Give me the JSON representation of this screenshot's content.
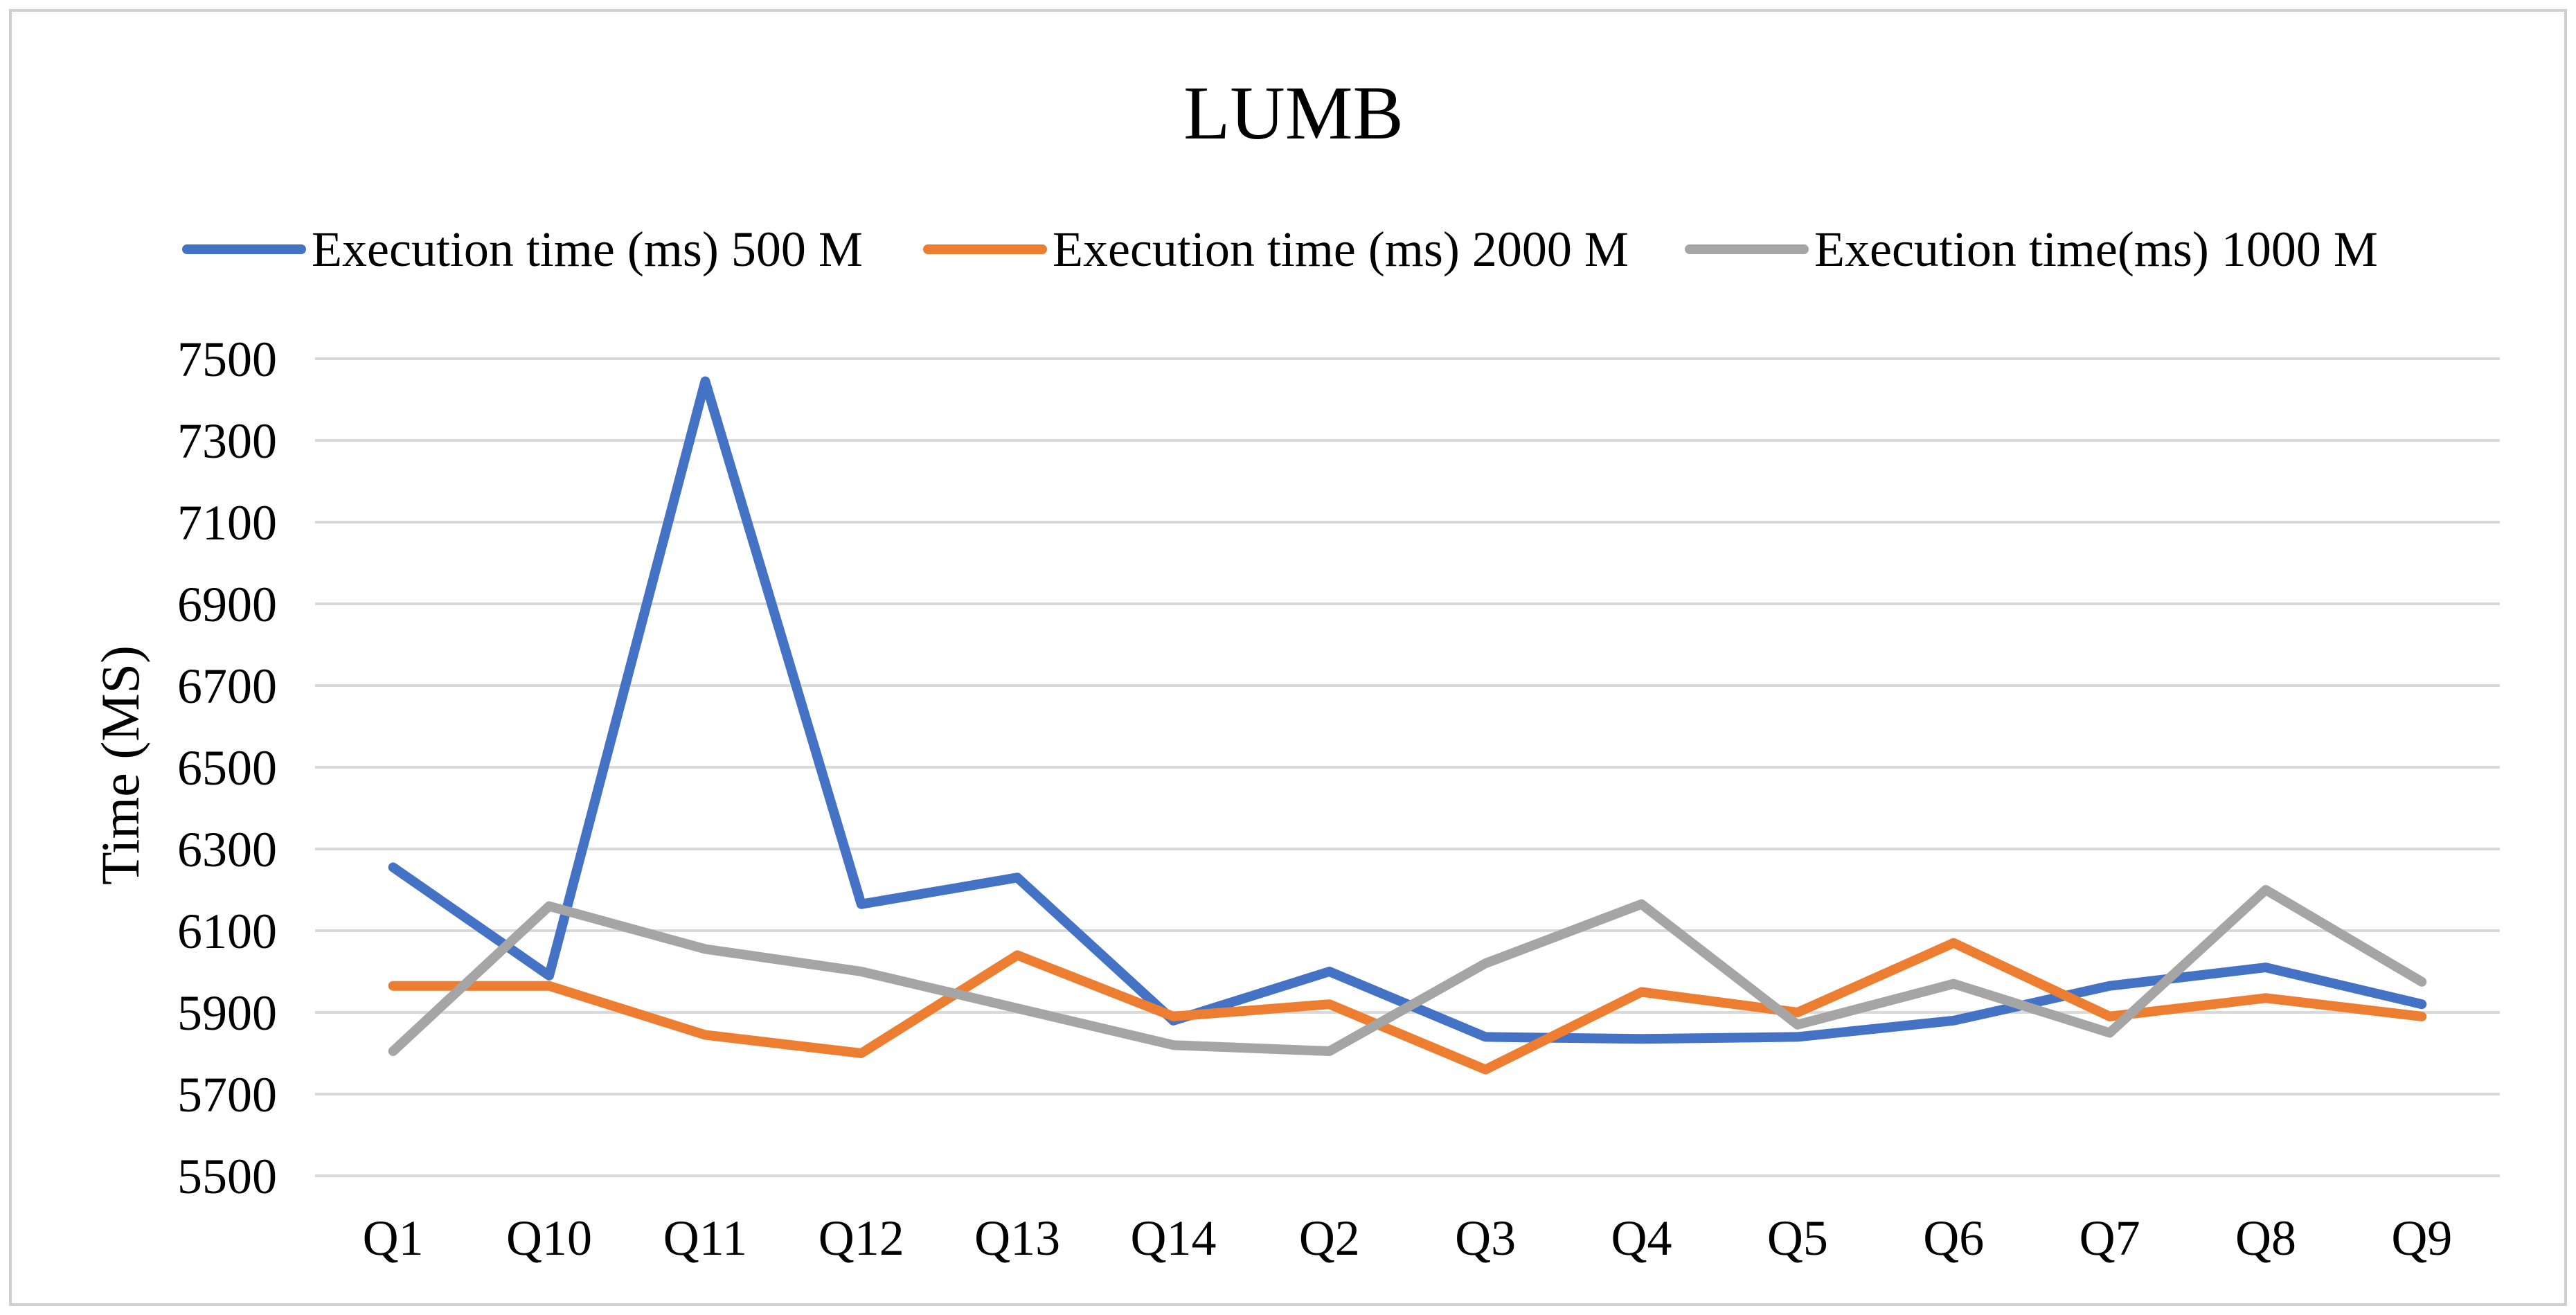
{
  "colors": {
    "background": "#ffffff",
    "frame": "#d0d0d0",
    "gridline": "#d9d9d9",
    "axis": "#d9d9d9",
    "text": "#000000"
  },
  "chart_data": {
    "type": "line",
    "title": "LUMB",
    "xlabel": "",
    "ylabel": "Time (MS)",
    "ylim": [
      5500,
      7500
    ],
    "ytick_step": 200,
    "yticks": [
      "5500",
      "5700",
      "5900",
      "6100",
      "6300",
      "6500",
      "6700",
      "6900",
      "7100",
      "7300",
      "7500"
    ],
    "grid": true,
    "legend_position": "top",
    "categories": [
      "Q1",
      "Q10",
      "Q11",
      "Q12",
      "Q13",
      "Q14",
      "Q2",
      "Q3",
      "Q4",
      "Q5",
      "Q6",
      "Q7",
      "Q8",
      "Q9"
    ],
    "series": [
      {
        "name": "Execution time (ms) 500 M",
        "color": "#4472C4",
        "values": [
          6255,
          5990,
          7445,
          6165,
          6230,
          5880,
          6000,
          5840,
          5835,
          5840,
          5880,
          5965,
          6010,
          5920
        ]
      },
      {
        "name": "Execution time (ms) 2000 M",
        "color": "#ED7D31",
        "values": [
          5965,
          5965,
          5845,
          5800,
          6040,
          5890,
          5920,
          5760,
          5950,
          5900,
          6070,
          5890,
          5935,
          5890
        ]
      },
      {
        "name": "Execution time(ms) 1000 M",
        "color": "#A5A5A5",
        "values": [
          5805,
          6160,
          6055,
          6000,
          5910,
          5820,
          5805,
          6020,
          6165,
          5870,
          5970,
          5850,
          6200,
          5975
        ]
      }
    ]
  }
}
